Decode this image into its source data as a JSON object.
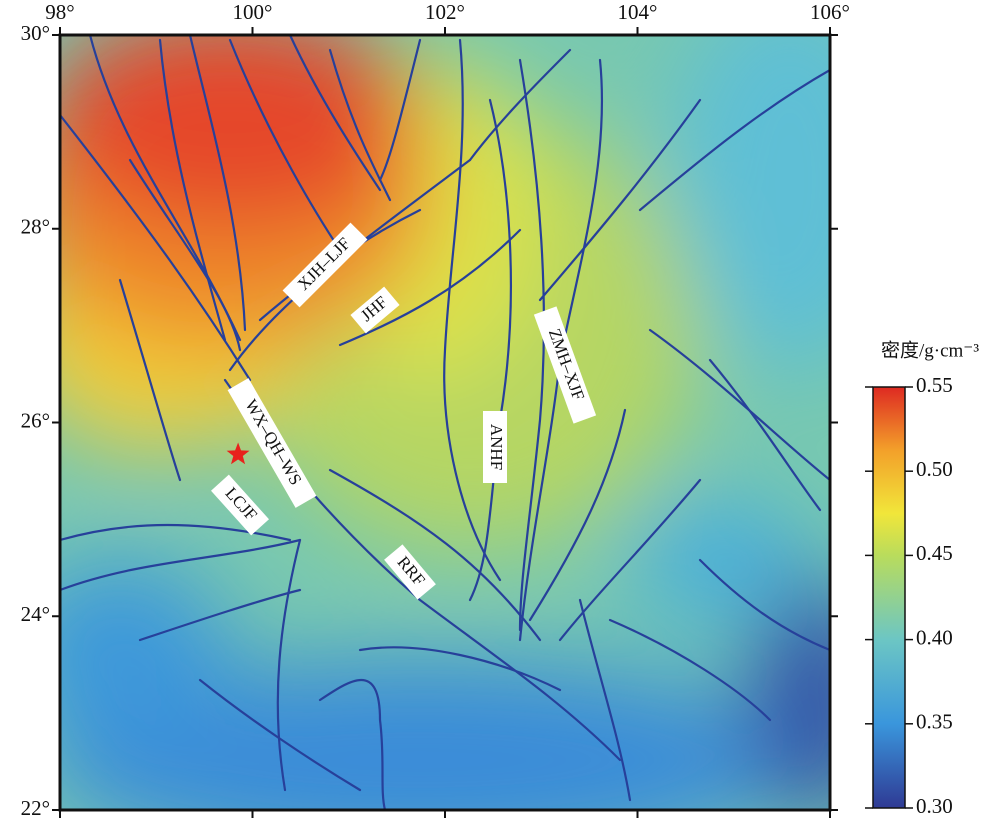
{
  "map": {
    "xlim": [
      98,
      106
    ],
    "ylim": [
      22,
      30
    ],
    "lon_ticks": [
      {
        "value": 98,
        "label": "98°"
      },
      {
        "value": 100,
        "label": "100°"
      },
      {
        "value": 102,
        "label": "102°"
      },
      {
        "value": 104,
        "label": "104°"
      },
      {
        "value": 106,
        "label": "106°"
      }
    ],
    "lat_ticks": [
      {
        "value": 30,
        "label": "30°"
      },
      {
        "value": 28,
        "label": "28°"
      },
      {
        "value": 26,
        "label": "26°"
      },
      {
        "value": 24,
        "label": "24°"
      },
      {
        "value": 22,
        "label": "22°"
      }
    ],
    "faults": [
      "XJH–LJF",
      "JHF",
      "WX–QH–WS",
      "LCJF",
      "RRF",
      "ANHF",
      "ZMH–XJF"
    ],
    "epicenter": {
      "lon": 99.85,
      "lat": 25.67,
      "color": "#e8221c"
    }
  },
  "colorbar": {
    "title": "密度/g·cm⁻³",
    "lim": [
      0.3,
      0.55
    ],
    "ticks": [
      {
        "value": 0.3,
        "label": "0.30"
      },
      {
        "value": 0.35,
        "label": "0.35"
      },
      {
        "value": 0.4,
        "label": "0.40"
      },
      {
        "value": 0.45,
        "label": "0.45"
      },
      {
        "value": 0.5,
        "label": "0.50"
      },
      {
        "value": 0.55,
        "label": "0.55"
      }
    ]
  }
}
